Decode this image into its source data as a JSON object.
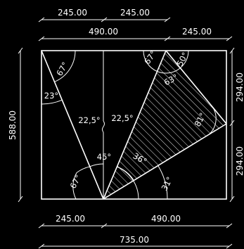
{
  "colors": {
    "background": "#000000",
    "lines": "#ffffff"
  },
  "dimensions": {
    "top_left_half": "245.00",
    "top_right_half": "245.00",
    "top_left_width": "490.00",
    "top_right_width": "245.00",
    "left_height": "588.00",
    "right_upper_height": "294.00",
    "right_lower_height": "294.00",
    "bottom_left_width": "245.00",
    "bottom_right_width": "490.00",
    "bottom_total_width": "735.00"
  },
  "angles": {
    "left_top": "67°",
    "left_side": "23°",
    "center_left": "22,5°",
    "center_right": "22,5°",
    "bottom_center": "45°",
    "bottom_left": "67°",
    "triangle_top_left": "67°",
    "triangle_top_right": "50°",
    "triangle_top_inner": "63°",
    "triangle_right": "81°",
    "triangle_bottom": "36°",
    "bottom_right": "31°"
  }
}
